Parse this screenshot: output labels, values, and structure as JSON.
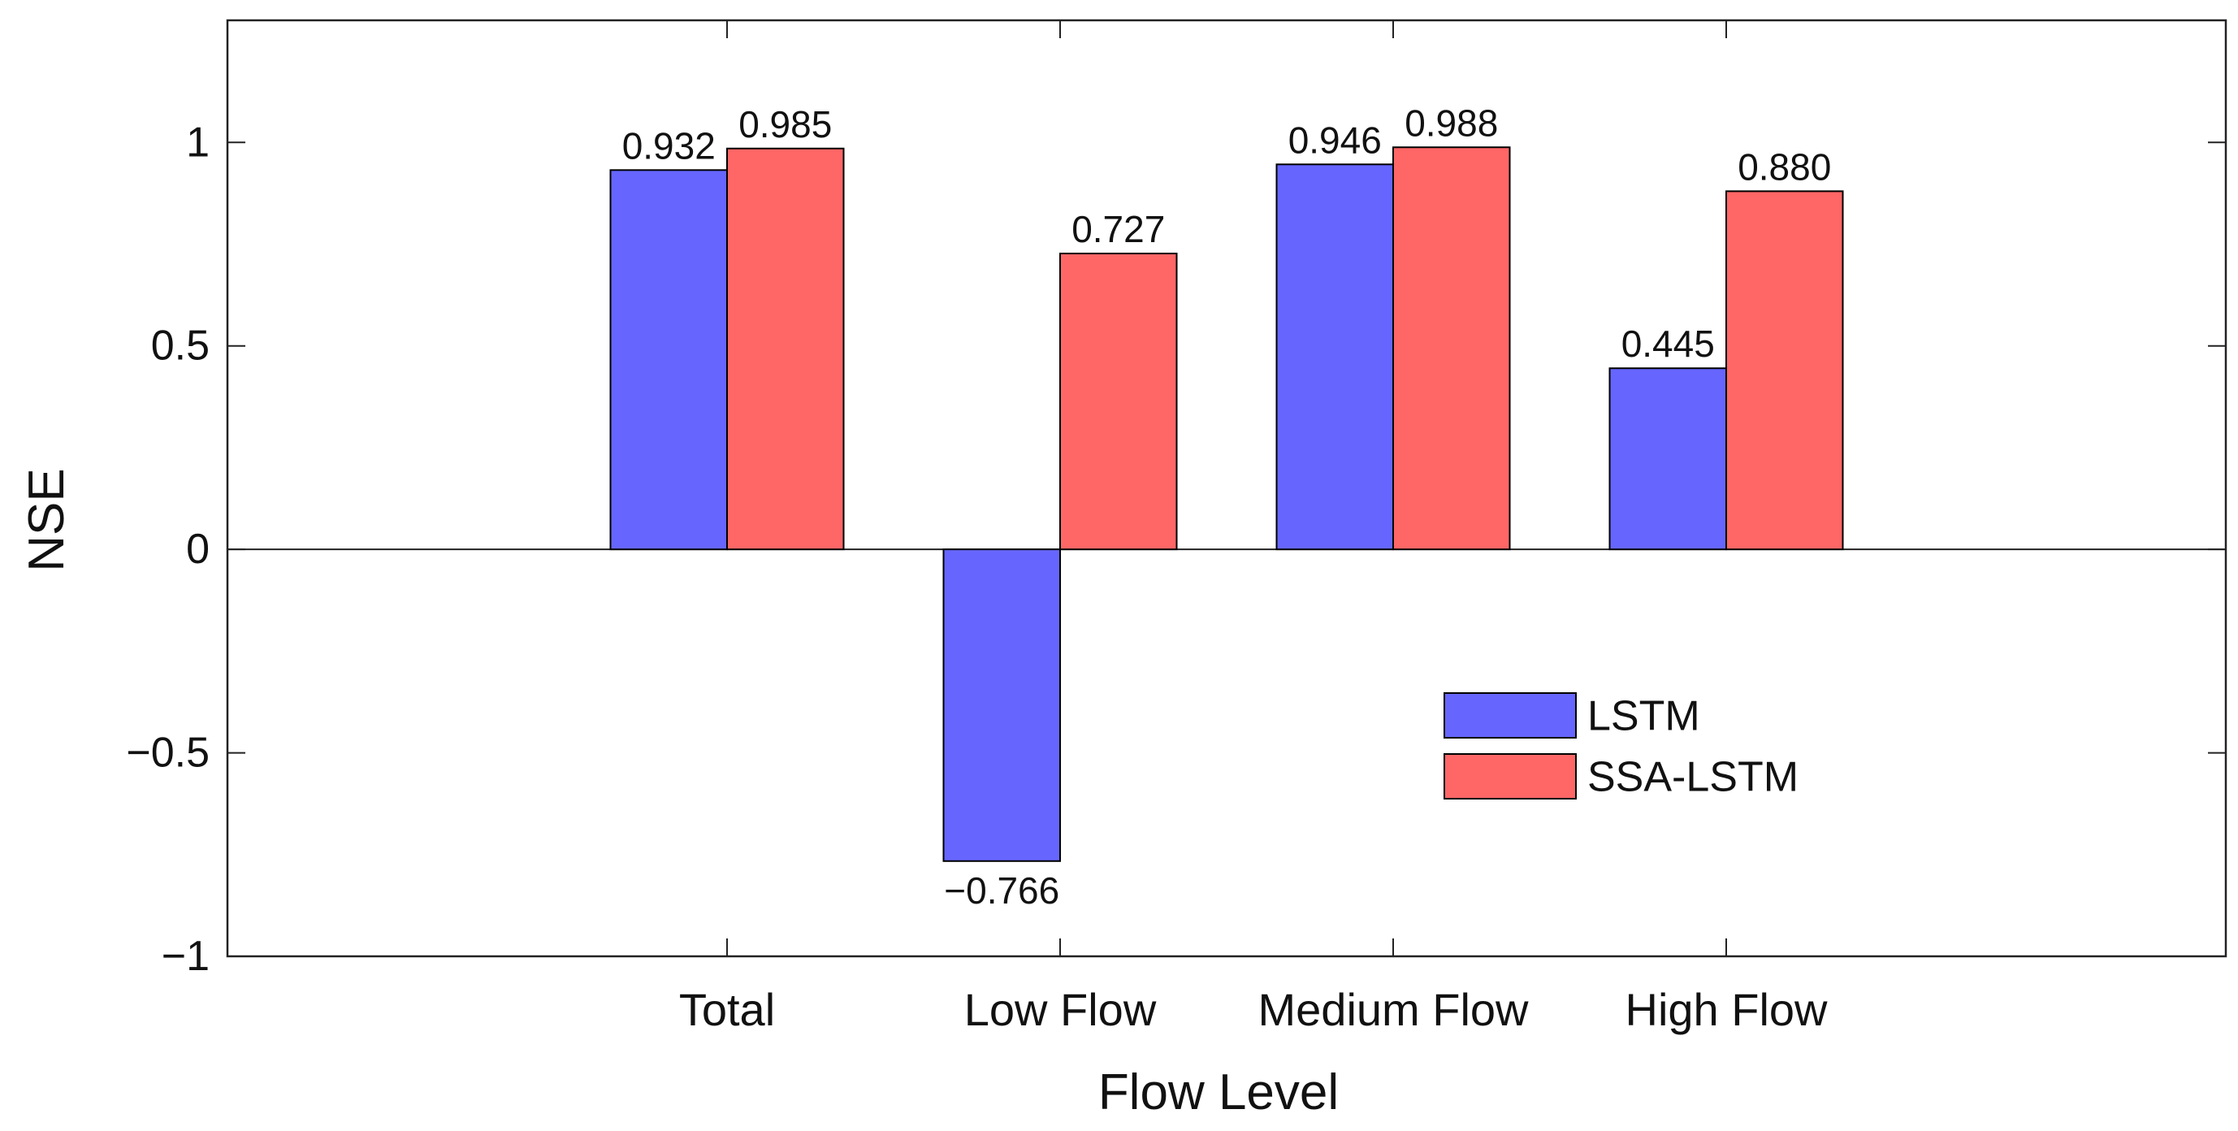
{
  "chart_data": {
    "type": "bar",
    "title": "",
    "xlabel": "Flow Level",
    "ylabel": "NSE",
    "categories": [
      "Total",
      "Low Flow",
      "Medium Flow",
      "High Flow"
    ],
    "series": [
      {
        "name": "LSTM",
        "color": "#6666ff",
        "values": [
          0.932,
          -0.766,
          0.946,
          0.445
        ],
        "labels": [
          "0.932",
          "−0.766",
          "0.946",
          "0.445"
        ]
      },
      {
        "name": "SSA-LSTM",
        "color": "#ff6666",
        "values": [
          0.985,
          0.727,
          0.988,
          0.88
        ],
        "labels": [
          "0.985",
          "0.727",
          "0.988",
          "0.880"
        ]
      }
    ],
    "ylim": [
      -1,
      1.3
    ],
    "yticks": [
      -1,
      -0.5,
      0,
      0.5,
      1
    ],
    "ytick_labels": [
      "−1",
      "−0.5",
      "0",
      "0.5",
      "1"
    ],
    "xlim": [
      0,
      6
    ],
    "grid": false,
    "legend_position": "lower-right"
  }
}
